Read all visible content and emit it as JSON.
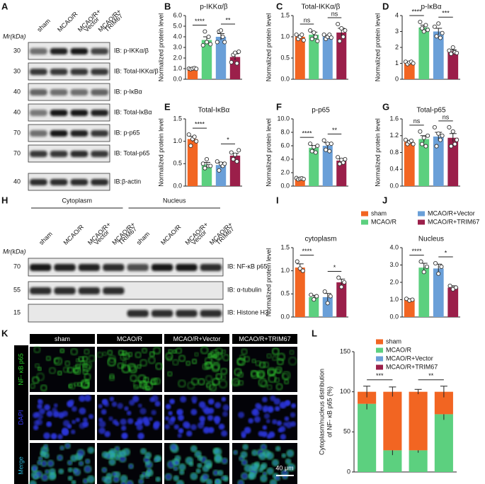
{
  "panel_letters": [
    "A",
    "B",
    "C",
    "D",
    "E",
    "F",
    "G",
    "H",
    "I",
    "J",
    "K",
    "L"
  ],
  "blot_a": {
    "mw_header": "Mr(kDa)",
    "lanes": [
      [
        "sham"
      ],
      [
        "MCAO/R"
      ],
      [
        "MCAO/R+",
        "Vector"
      ],
      [
        "MCAO/R+",
        "TRIM67"
      ]
    ],
    "rows": [
      {
        "mw": "30",
        "label": "IB: p-IKKα/β"
      },
      {
        "mw": "30",
        "label": "IB: Total-IKKα/β"
      },
      {
        "mw": "40",
        "label": "IB: p-IκBα"
      },
      {
        "mw": "40",
        "label": "IB: Total-IκBα"
      },
      {
        "mw": "70",
        "label": "IB: p-p65"
      },
      {
        "mw": "70",
        "label": "IB: Total-p65"
      },
      {
        "mw": "40",
        "label": "IB:β-actin"
      }
    ]
  },
  "blot_h": {
    "groups": [
      "Cytoplasm",
      "Nucleus"
    ],
    "mw_header": "Mr(kDa)",
    "lanes": [
      [
        "sham"
      ],
      [
        "MCAO/R"
      ],
      [
        "MCAO/R+",
        "Vector"
      ],
      [
        "MCAO/R+",
        "TRIM67"
      ],
      [
        "sham"
      ],
      [
        "MCAO/R"
      ],
      [
        "MCAO/R+",
        "Vector"
      ],
      [
        "MCAO/R+",
        "TRIM67"
      ]
    ],
    "rows": [
      {
        "mw": "70",
        "label": "IB: NF-κB p65"
      },
      {
        "mw": "55",
        "label": "IB: α-tubulin"
      },
      {
        "mw": "15",
        "label": "IB: Histone H3"
      }
    ]
  },
  "images_k": {
    "columns": [
      "sham",
      "MCAO/R",
      "MCAO/R+Vector",
      "MCAO/R+TRIM67"
    ],
    "rows": [
      "NF- κB p65",
      "DAPI",
      "Merge"
    ],
    "scale_bar": "40 μm"
  },
  "chart_data": [
    {
      "type": "bar",
      "title": "p-IKKα/β",
      "y_label": "Normalized protein level",
      "colors": [
        "#f26522",
        "#5cd07f",
        "#6a9fd8",
        "#9b1f4a"
      ],
      "values": [
        1.0,
        3.7,
        4.0,
        2.1
      ],
      "errors": [
        0.04,
        0.3,
        0.3,
        0.3
      ],
      "points": [
        [
          1.0,
          0.95,
          1.0,
          1.05,
          0.98
        ],
        [
          3.2,
          4.5,
          3.5,
          4.0,
          3.3
        ],
        [
          3.5,
          4.5,
          4.6,
          4.0,
          3.5
        ],
        [
          1.6,
          2.3,
          2.5,
          1.5,
          2.6
        ]
      ],
      "ylim": [
        0,
        6
      ],
      "yticks": [
        {
          "value": 0,
          "label": "0.0"
        },
        {
          "value": 1,
          "label": "1.0"
        },
        {
          "value": 2,
          "label": "2.0"
        },
        {
          "value": 3,
          "label": "3.0"
        },
        {
          "value": 4,
          "label": "4.0"
        },
        {
          "value": 5,
          "label": "5.0"
        },
        {
          "value": 6,
          "label": "6.0"
        }
      ],
      "comparisons": [
        {
          "groups": [
            0,
            1
          ],
          "label": "****"
        },
        {
          "groups": [
            2,
            3
          ],
          "label": "**"
        }
      ]
    },
    {
      "type": "bar",
      "title": "Total-IKKα/β",
      "y_label": "Normalized protein level",
      "colors": [
        "#f26522",
        "#5cd07f",
        "#6a9fd8",
        "#9b1f4a"
      ],
      "values": [
        1.0,
        1.05,
        1.0,
        1.1
      ],
      "errors": [
        0.04,
        0.06,
        0.04,
        0.1
      ],
      "points": [
        [
          1.05,
          0.95,
          1.0,
          1.05,
          0.92
        ],
        [
          1.15,
          0.95,
          1.1,
          1.0,
          0.9
        ],
        [
          1.05,
          0.95,
          1.0,
          1.05,
          0.98
        ],
        [
          1.3,
          0.9,
          1.2,
          1.0,
          1.15
        ]
      ],
      "ylim": [
        0,
        1.5
      ],
      "yticks": [
        {
          "value": 0,
          "label": "0.0"
        },
        {
          "value": 0.5,
          "label": "0.5"
        },
        {
          "value": 1,
          "label": "1.0"
        },
        {
          "value": 1.5,
          "label": "1.5"
        }
      ],
      "comparisons": [
        {
          "groups": [
            0,
            1
          ],
          "label": "ns"
        },
        {
          "groups": [
            2,
            3
          ],
          "label": "ns"
        }
      ]
    },
    {
      "type": "bar",
      "title": "p-IκBα",
      "y_label": "Normalized protein level",
      "colors": [
        "#f26522",
        "#5cd07f",
        "#6a9fd8",
        "#9b1f4a"
      ],
      "values": [
        1.05,
        3.25,
        3.0,
        1.75
      ],
      "errors": [
        0.05,
        0.15,
        0.2,
        0.1
      ],
      "points": [
        [
          1.1,
          0.95,
          1.05,
          1.1,
          1.0
        ],
        [
          3.6,
          3.2,
          3.0,
          3.4,
          3.1
        ],
        [
          3.3,
          2.7,
          3.5,
          2.6,
          2.9
        ],
        [
          1.8,
          1.6,
          2.0,
          1.7,
          1.65
        ]
      ],
      "ylim": [
        0,
        4
      ],
      "yticks": [
        0,
        1,
        2,
        3,
        4
      ],
      "comparisons": [
        {
          "groups": [
            0,
            1
          ],
          "label": "****"
        },
        {
          "groups": [
            2,
            3
          ],
          "label": "***"
        }
      ]
    },
    {
      "type": "bar",
      "title": "Total-IκBα",
      "y_label": "Normalized protein level",
      "colors": [
        "#f26522",
        "#5cd07f",
        "#6a9fd8",
        "#9b1f4a"
      ],
      "values": [
        1.05,
        0.48,
        0.47,
        0.68
      ],
      "errors": [
        0.06,
        0.05,
        0.06,
        0.05
      ],
      "points": [
        [
          1.15,
          0.9,
          1.05,
          1.1,
          1.0
        ],
        [
          0.5,
          0.4,
          0.6,
          0.45,
          0.45
        ],
        [
          0.55,
          0.35,
          0.5,
          0.45,
          0.5
        ],
        [
          0.75,
          0.6,
          0.7,
          0.55,
          0.8
        ]
      ],
      "ylim": [
        0,
        1.5
      ],
      "yticks": [
        {
          "value": 0,
          "label": "0.0"
        },
        {
          "value": 0.5,
          "label": "0.5"
        },
        {
          "value": 1,
          "label": "1.0"
        },
        {
          "value": 1.5,
          "label": "1.5"
        }
      ],
      "comparisons": [
        {
          "groups": [
            0,
            1
          ],
          "label": "****"
        },
        {
          "groups": [
            2,
            3
          ],
          "label": "*"
        }
      ]
    },
    {
      "type": "bar",
      "title": "p-p65",
      "y_label": "Normalized protein level",
      "colors": [
        "#f26522",
        "#5cd07f",
        "#6a9fd8",
        "#9b1f4a"
      ],
      "values": [
        1.1,
        5.7,
        6.0,
        3.8
      ],
      "errors": [
        0.1,
        0.35,
        0.45,
        0.3
      ],
      "points": [
        [
          1.2,
          1.0,
          1.1,
          1.15,
          1.05
        ],
        [
          6.3,
          5.2,
          5.8,
          5.0,
          6.0
        ],
        [
          6.8,
          5.4,
          6.3,
          5.2,
          6.3
        ],
        [
          4.3,
          3.3,
          3.9,
          3.5,
          4.0
        ]
      ],
      "ylim": [
        0,
        10
      ],
      "yticks": [
        {
          "value": 0,
          "label": "0.0"
        },
        {
          "value": 2,
          "label": "2.0"
        },
        {
          "value": 4,
          "label": "4.0"
        },
        {
          "value": 6,
          "label": "6.0"
        },
        {
          "value": 8,
          "label": "8.0"
        },
        {
          "value": 10,
          "label": "10.0"
        }
      ],
      "comparisons": [
        {
          "groups": [
            0,
            1
          ],
          "label": "****"
        },
        {
          "groups": [
            2,
            3
          ],
          "label": "**"
        }
      ]
    },
    {
      "type": "bar",
      "title": "Total-p65",
      "y_label": "Normalized protein level",
      "colors": [
        "#f26522",
        "#5cd07f",
        "#6a9fd8",
        "#9b1f4a"
      ],
      "values": [
        1.05,
        1.12,
        1.18,
        1.15
      ],
      "errors": [
        0.04,
        0.08,
        0.1,
        0.1
      ],
      "points": [
        [
          1.1,
          1.0,
          1.05,
          1.08,
          1.0
        ],
        [
          1.3,
          1.0,
          1.15,
          0.95,
          1.2
        ],
        [
          1.4,
          0.95,
          1.25,
          1.1,
          1.2
        ],
        [
          1.4,
          0.95,
          1.3,
          1.0,
          1.1
        ]
      ],
      "ylim": [
        0,
        1.6
      ],
      "yticks": [
        {
          "value": 0,
          "label": "0.0"
        },
        {
          "value": 0.4,
          "label": "0.4"
        },
        {
          "value": 0.8,
          "label": "0.8"
        },
        {
          "value": 1.2,
          "label": "1.2"
        },
        {
          "value": 1.6,
          "label": "1.6"
        }
      ],
      "comparisons": [
        {
          "groups": [
            0,
            1
          ],
          "label": "ns"
        },
        {
          "groups": [
            2,
            3
          ],
          "label": "ns"
        }
      ]
    },
    {
      "type": "bar",
      "title": "cytoplasm",
      "y_label": "Normalized protein level",
      "colors": [
        "#f26522",
        "#5cd07f",
        "#6a9fd8",
        "#9b1f4a"
      ],
      "values": [
        1.07,
        0.43,
        0.43,
        0.75
      ],
      "errors": [
        0.08,
        0.04,
        0.08,
        0.07
      ],
      "points": [
        [
          1.2,
          1.05,
          1.0
        ],
        [
          0.48,
          0.38,
          0.45
        ],
        [
          0.55,
          0.3,
          0.45
        ],
        [
          0.85,
          0.65,
          0.75
        ]
      ],
      "ylim": [
        0,
        1.5
      ],
      "yticks": [
        {
          "value": 0,
          "label": "0.0"
        },
        {
          "value": 0.5,
          "label": "0.5"
        },
        {
          "value": 1,
          "label": "1.0"
        },
        {
          "value": 1.5,
          "label": "1.5"
        }
      ],
      "comparisons": [
        {
          "groups": [
            0,
            1
          ],
          "label": "****"
        },
        {
          "groups": [
            2,
            3
          ],
          "label": "*"
        }
      ]
    },
    {
      "type": "bar",
      "title": "Nucleus",
      "colors": [
        "#f26522",
        "#5cd07f",
        "#6a9fd8",
        "#9b1f4a"
      ],
      "values": [
        1.0,
        2.85,
        2.8,
        1.7
      ],
      "errors": [
        0.05,
        0.25,
        0.25,
        0.1
      ],
      "points": [
        [
          1.05,
          0.95,
          1.0
        ],
        [
          3.2,
          2.6,
          2.9
        ],
        [
          3.1,
          2.5,
          2.9
        ],
        [
          1.8,
          1.6,
          1.7
        ]
      ],
      "ylim": [
        0,
        4
      ],
      "yticks": [
        {
          "value": 0,
          "label": "0.0"
        },
        {
          "value": 1,
          "label": "1.0"
        },
        {
          "value": 2,
          "label": "2.0"
        },
        {
          "value": 3,
          "label": "3.0"
        },
        {
          "value": 4,
          "label": "4.0"
        }
      ],
      "comparisons": [
        {
          "groups": [
            0,
            1
          ],
          "label": "****"
        },
        {
          "groups": [
            2,
            3
          ],
          "label": "*"
        }
      ],
      "legend": [
        {
          "name": "sham",
          "color": "#f26522"
        },
        {
          "name": "MCAO/R",
          "color": "#5cd07f"
        },
        {
          "name": "MCAO/R+Vector",
          "color": "#6a9fd8"
        },
        {
          "name": "MCAO/R+TRIM67",
          "color": "#9b1f4a"
        }
      ]
    },
    {
      "type": "stacked_bar",
      "y_label": [
        "Cytoplasm/nucleus distribution",
        "of NF- κB p65 (%)"
      ],
      "series": [
        {
          "color": "#5cd07f",
          "values": [
            85,
            27,
            27,
            72
          ],
          "errors": [
            7,
            6,
            3,
            7
          ]
        },
        {
          "color": "#f26522",
          "values": [
            15,
            73,
            73,
            28
          ],
          "errors": [
            7,
            6,
            3,
            7
          ]
        }
      ],
      "ylim": [
        0,
        150
      ],
      "yticks": [
        0,
        50,
        100,
        150
      ],
      "comparisons": [
        {
          "groups": [
            0,
            1
          ],
          "label": "***"
        },
        {
          "groups": [
            2,
            3
          ],
          "label": "**"
        }
      ],
      "legend": [
        {
          "name": "sham",
          "color": "#f26522"
        },
        {
          "name": "MCAO/R",
          "color": "#5cd07f"
        },
        {
          "name": "MCAO/R+Vector",
          "color": "#6a9fd8"
        },
        {
          "name": "MCAO/R+TRIM67",
          "color": "#9b1f4a"
        }
      ]
    }
  ]
}
